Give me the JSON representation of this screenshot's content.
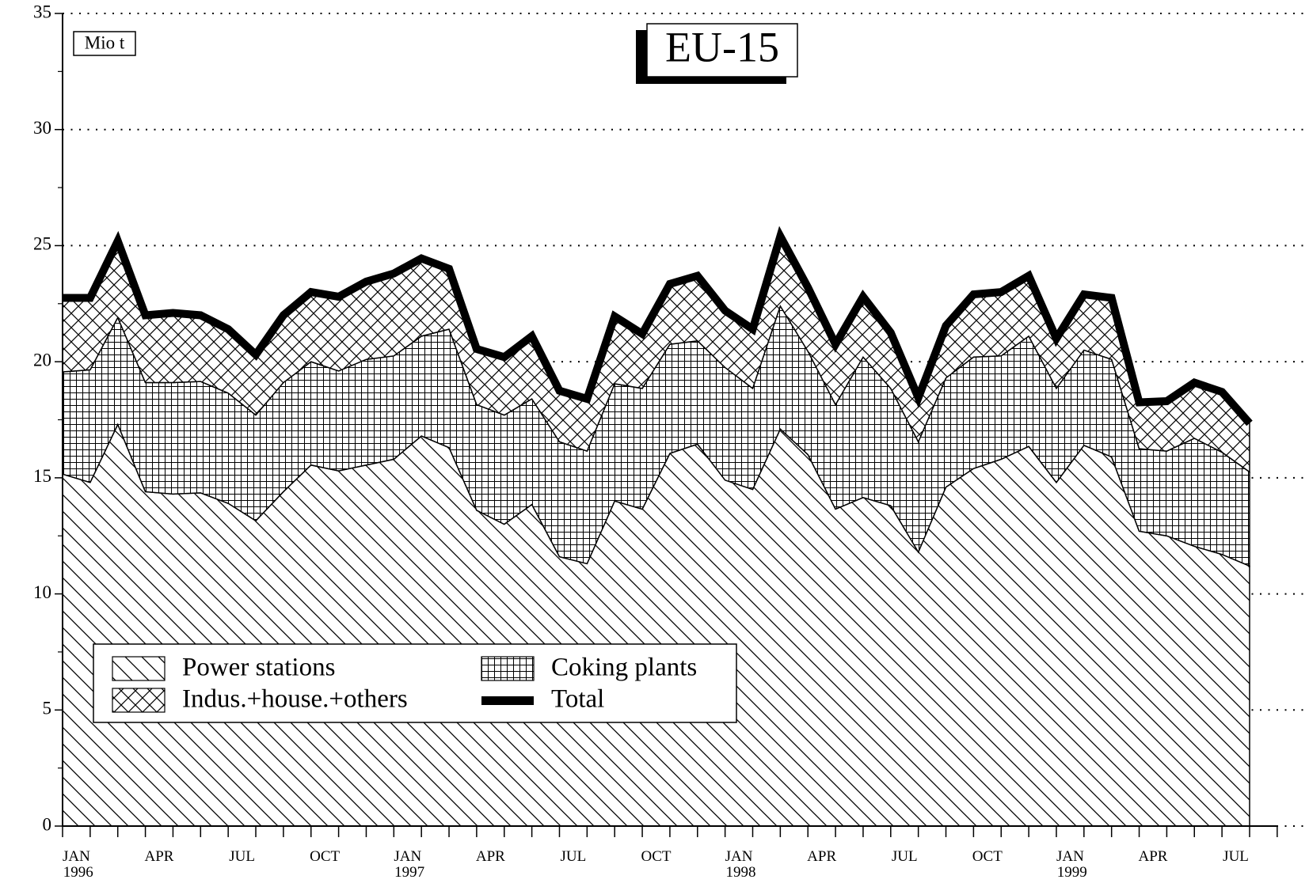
{
  "chart_data": {
    "type": "stacked_area",
    "title": "EU-15",
    "y_label": "Mio t",
    "categories": [
      "JAN 1996",
      null,
      null,
      "APR",
      null,
      null,
      "JUL",
      null,
      null,
      "OCT",
      null,
      null,
      "JAN 1997",
      null,
      null,
      "APR",
      null,
      null,
      "JUL",
      null,
      null,
      "OCT",
      null,
      null,
      "JAN 1998",
      null,
      null,
      "APR",
      null,
      null,
      "JUL",
      null,
      null,
      "OCT",
      null,
      null,
      "JAN 1999",
      null,
      null,
      "APR",
      null,
      null,
      "JUL",
      null
    ],
    "series": [
      {
        "name": "Power stations",
        "color": "#000000",
        "pattern": "diagonal",
        "values": [
          15.16,
          14.8,
          17.3,
          14.4,
          14.3,
          14.35,
          13.9,
          13.15,
          14.4,
          15.55,
          15.3,
          15.55,
          15.8,
          16.8,
          16.3,
          13.6,
          13.0,
          13.85,
          11.6,
          11.3,
          14.0,
          13.65,
          16.05,
          16.45,
          14.9,
          14.5,
          17.1,
          16.0,
          13.65,
          14.15,
          13.8,
          11.8,
          14.6,
          15.4,
          15.8,
          16.35,
          14.8,
          16.4,
          15.9,
          12.7,
          12.5,
          12.05,
          11.7,
          11.2
        ]
      },
      {
        "name": "Coking plants",
        "color": "#000000",
        "pattern": "grid",
        "values": [
          4.4,
          4.85,
          4.6,
          4.7,
          4.8,
          4.8,
          4.75,
          4.55,
          4.7,
          4.45,
          4.3,
          4.55,
          4.45,
          4.3,
          5.1,
          4.55,
          4.7,
          4.55,
          4.95,
          4.85,
          5.05,
          5.2,
          4.7,
          4.45,
          4.85,
          4.35,
          5.3,
          4.45,
          4.5,
          6.05,
          5.05,
          4.75,
          4.7,
          4.8,
          4.45,
          4.75,
          4.05,
          4.1,
          4.2,
          3.55,
          3.65,
          4.65,
          4.4,
          4.05
        ]
      },
      {
        "name": "Indus.+house.+others",
        "color": "#000000",
        "pattern": "crosshatch",
        "values": [
          3.2,
          3.1,
          3.3,
          2.9,
          3.0,
          2.85,
          2.75,
          2.6,
          2.9,
          3.0,
          3.2,
          3.35,
          3.55,
          3.35,
          2.6,
          2.4,
          2.5,
          2.7,
          2.2,
          2.25,
          2.9,
          2.35,
          2.6,
          2.8,
          2.45,
          2.55,
          3.0,
          2.75,
          2.6,
          2.6,
          2.4,
          1.9,
          2.25,
          2.7,
          2.75,
          2.6,
          2.15,
          2.4,
          2.65,
          2.0,
          2.15,
          2.4,
          2.6,
          2.1
        ]
      },
      {
        "name": "Total",
        "color": "#000000",
        "pattern": "line",
        "values": [
          22.75,
          22.75,
          25.2,
          22.0,
          22.1,
          22.0,
          21.4,
          20.3,
          22.0,
          23.0,
          22.8,
          23.45,
          23.8,
          24.45,
          24.0,
          20.55,
          20.2,
          21.1,
          18.75,
          18.4,
          21.95,
          21.2,
          23.35,
          23.7,
          22.2,
          21.4,
          25.4,
          23.2,
          20.75,
          22.8,
          21.25,
          18.45,
          21.55,
          22.9,
          23.0,
          23.7,
          21.0,
          22.9,
          22.75,
          18.25,
          18.3,
          19.1,
          18.7,
          17.35
        ]
      }
    ],
    "ylim": [
      0,
      35
    ],
    "yticks": [
      0,
      5,
      10,
      15,
      20,
      25,
      30,
      35
    ],
    "grid": true,
    "legend": "bottom-left"
  }
}
